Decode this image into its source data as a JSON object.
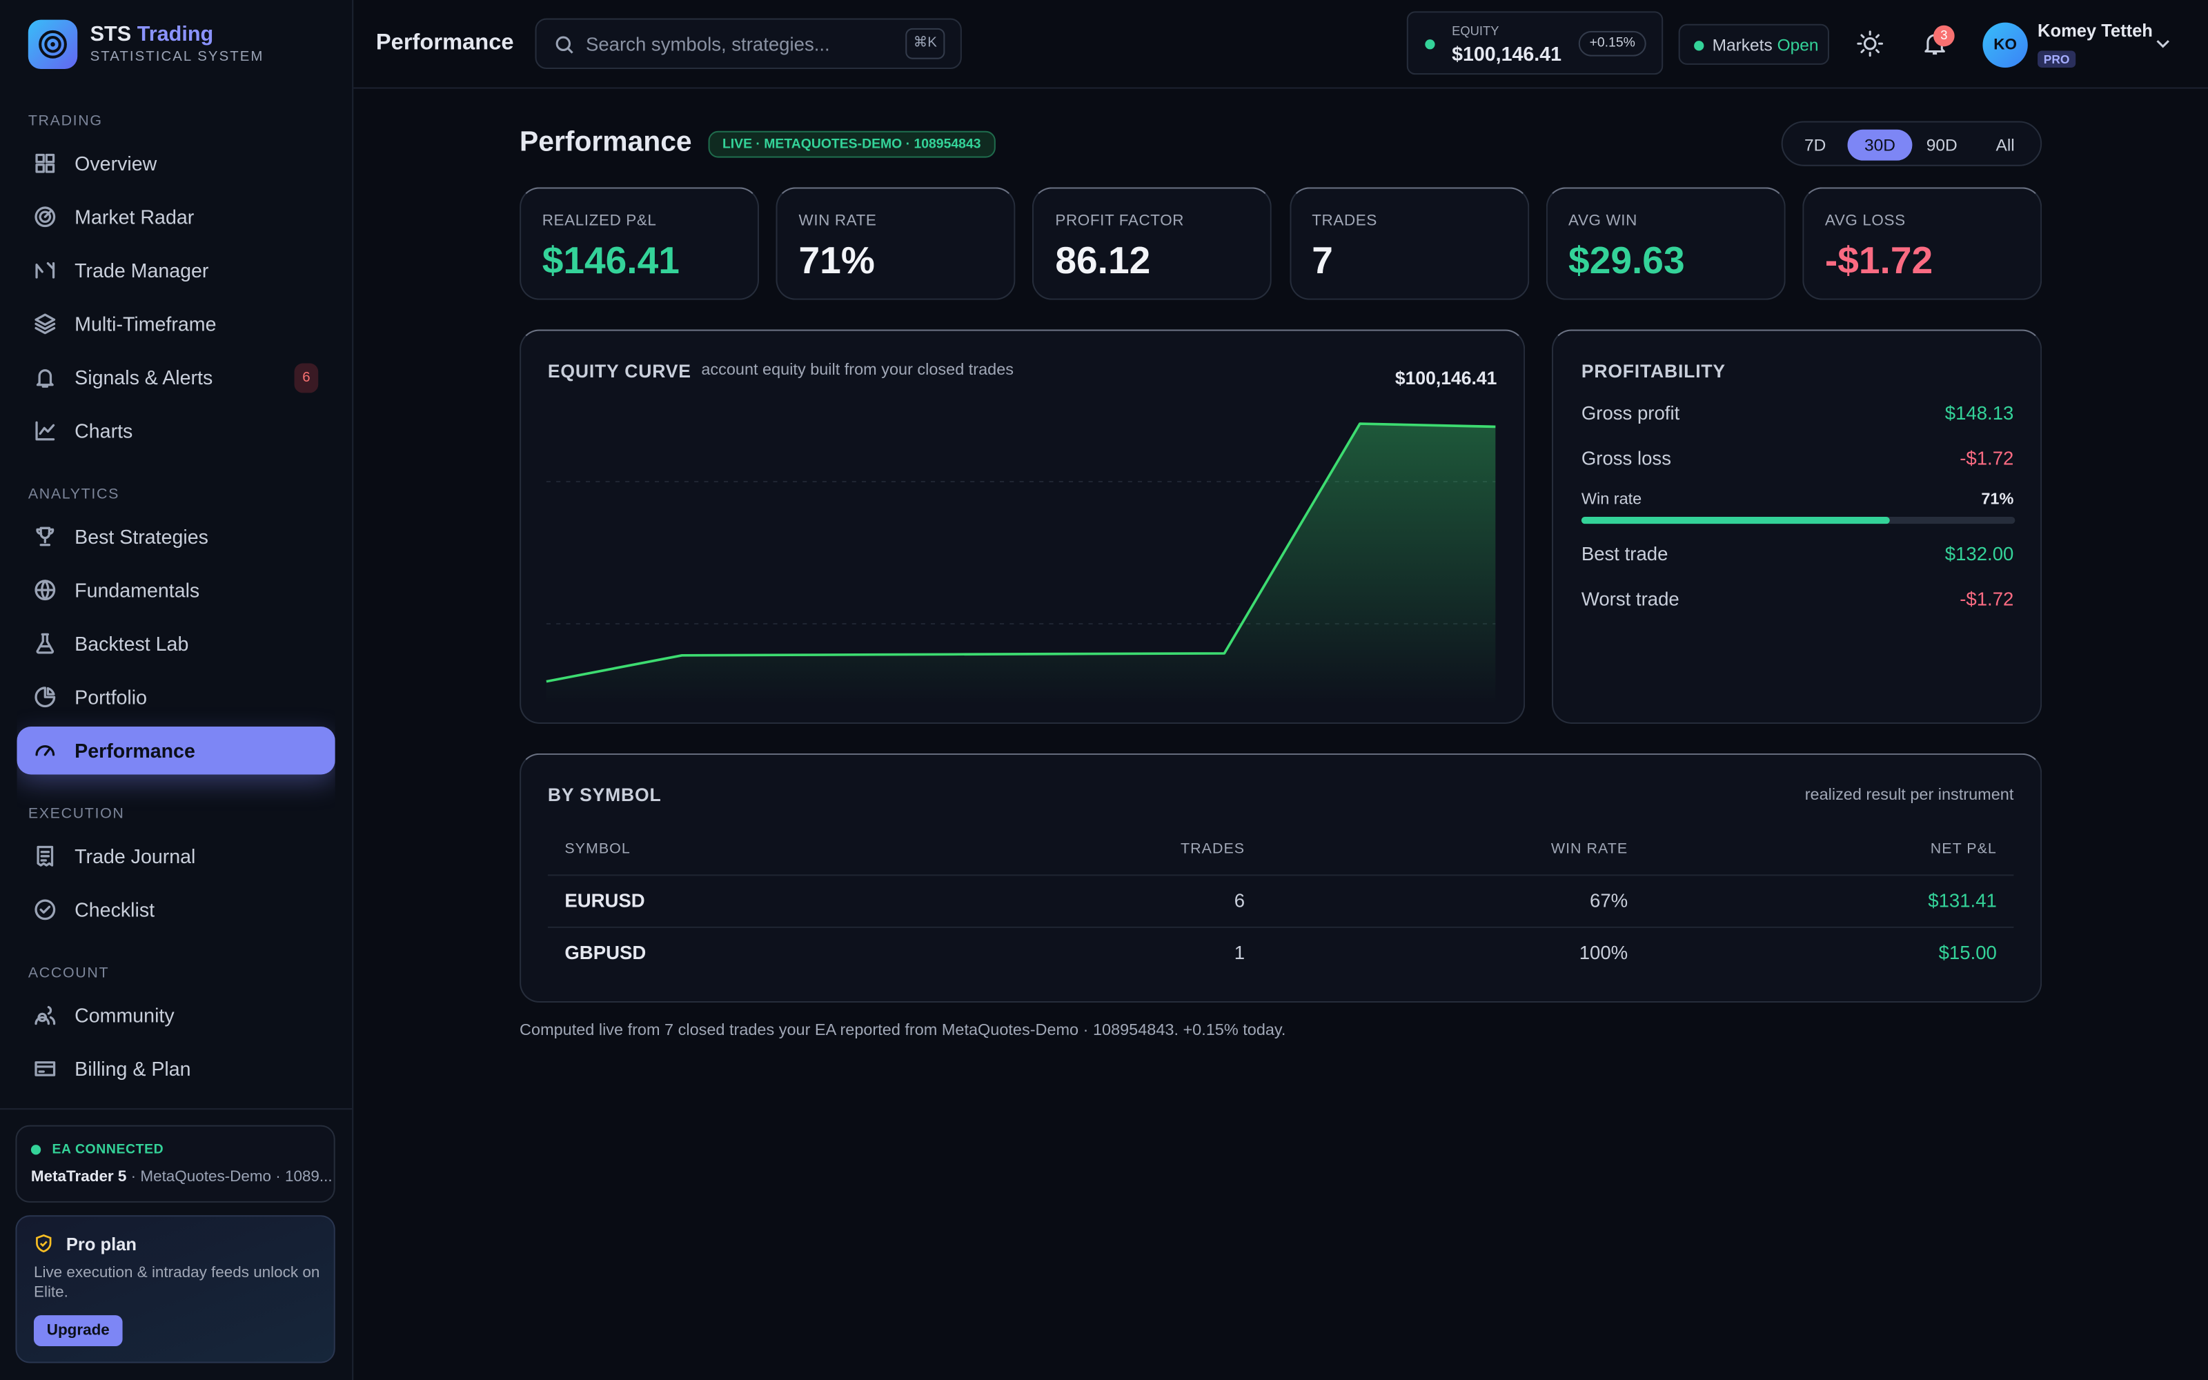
{
  "sidebar": {
    "brand": "STS",
    "brand_accent": "Trading",
    "brand_sub": "STATISTICAL SYSTEM",
    "sections": [
      {
        "title": "TRADING",
        "items": [
          {
            "label": "Overview"
          },
          {
            "label": "Market Radar"
          },
          {
            "label": "Trade Manager"
          },
          {
            "label": "Multi-Timeframe"
          },
          {
            "label": "Signals & Alerts",
            "badge": 6
          },
          {
            "label": "Charts"
          }
        ]
      },
      {
        "title": "ANALYTICS",
        "items": [
          {
            "label": "Best Strategies"
          },
          {
            "label": "Fundamentals"
          },
          {
            "label": "Backtest Lab"
          },
          {
            "label": "Portfolio"
          },
          {
            "label": "Performance",
            "active": true
          }
        ]
      },
      {
        "title": "EXECUTION",
        "items": [
          {
            "label": "Trade Journal"
          },
          {
            "label": "Checklist"
          }
        ]
      },
      {
        "title": "ACCOUNT",
        "items": [
          {
            "label": "Community"
          },
          {
            "label": "Billing & Plan"
          }
        ]
      }
    ],
    "ea": {
      "status": "EA CONNECTED",
      "platform": "MetaTrader 5",
      "account": "· MetaQuotes-Demo · 1089..."
    },
    "plan": {
      "title": "Pro plan",
      "text": "Live execution & intraday feeds unlock on Elite.",
      "button": "Upgrade"
    }
  },
  "topbar": {
    "title": "Performance",
    "search": "Search symbols, strategies...",
    "shortcut": "⌘K",
    "equity_label": "EQUITY",
    "equity": "$100,146.41",
    "equity_change": "+0.15%",
    "markets": "Markets",
    "markets_state": "Open",
    "notifications": 3,
    "user": {
      "initials": "KO",
      "name": "Komey Tetteh",
      "tier": "PRO"
    }
  },
  "page": {
    "title": "Performance",
    "badge": "LIVE · METAQUOTES-DEMO · 108954843",
    "ranges": [
      "7D",
      "30D",
      "90D",
      "All"
    ],
    "active_range": 1,
    "stats": [
      {
        "label": "REALIZED P&L",
        "value": "$146.41",
        "tone": "pos"
      },
      {
        "label": "WIN RATE",
        "value": "71%",
        "tone": "neu"
      },
      {
        "label": "PROFIT FACTOR",
        "value": "86.12",
        "tone": "neu"
      },
      {
        "label": "TRADES",
        "value": "7",
        "tone": "neu"
      },
      {
        "label": "AVG WIN",
        "value": "$29.63",
        "tone": "pos"
      },
      {
        "label": "AVG LOSS",
        "value": "-$1.72",
        "tone": "neg"
      }
    ],
    "profitability": {
      "title": "PROFITABILITY",
      "rows_top": [
        {
          "label": "Gross profit",
          "value": "$148.13",
          "tone": "pos"
        },
        {
          "label": "Gross loss",
          "value": "-$1.72",
          "tone": "neg"
        }
      ],
      "win_rate": {
        "label": "Win rate",
        "value": 71,
        "value_label": "71%"
      },
      "rows_bottom": [
        {
          "label": "Best trade",
          "value": "$132.00",
          "tone": "pos"
        },
        {
          "label": "Worst trade",
          "value": "-$1.72",
          "tone": "neg"
        }
      ]
    },
    "by_symbol": {
      "title": "BY SYMBOL",
      "note": "realized result per instrument",
      "columns": [
        "SYMBOL",
        "TRADES",
        "WIN RATE",
        "NET P&L"
      ],
      "rows": [
        [
          "EURUSD",
          6,
          "67%",
          "$131.41"
        ],
        [
          "GBPUSD",
          1,
          "100%",
          "$15.00"
        ]
      ]
    },
    "footer": "Computed live from 7 closed trades your EA reported from MetaQuotes-Demo · 108954843. +0.15% today."
  },
  "chart_data": {
    "type": "area",
    "title": "EQUITY CURVE",
    "subtitle": "account equity built from your closed trades",
    "value_label": "$100,146.41",
    "values": [
      100000,
      100015,
      100015.3,
      100015.6,
      100015.9,
      100016.13,
      100148.13,
      100146.41
    ],
    "color": "#3ddc71",
    "ylim": [
      99987,
      100161
    ],
    "grid": true
  }
}
